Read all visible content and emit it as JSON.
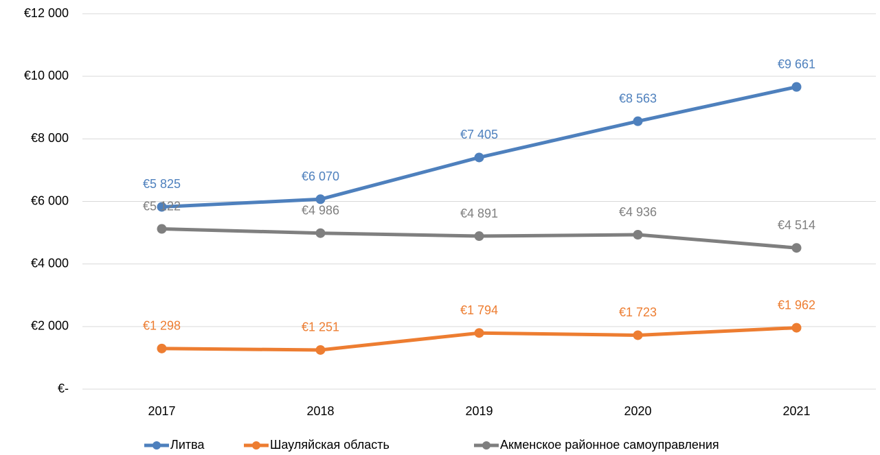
{
  "chart_data": {
    "type": "line",
    "categories": [
      "2017",
      "2018",
      "2019",
      "2020",
      "2021"
    ],
    "series": [
      {
        "name": "Литва",
        "color": "#4e80bd",
        "values": [
          5825,
          6070,
          7405,
          8563,
          9661
        ],
        "value_labels": [
          "€5 825",
          "€6 070",
          "€7 405",
          "€8 563",
          "€9 661"
        ]
      },
      {
        "name": "Шауляйская область",
        "color": "#ed7d31",
        "values": [
          1298,
          1251,
          1794,
          1723,
          1962
        ],
        "value_labels": [
          "€1 298",
          "€1 251",
          "€1 794",
          "€1 723",
          "€1 962"
        ]
      },
      {
        "name": "Акменское районное самоуправления",
        "color": "#7f7f7f",
        "values": [
          5122,
          4986,
          4891,
          4936,
          4514
        ],
        "value_labels": [
          "€5 122",
          "€4 986",
          "€4 891",
          "€4 936",
          "€4 514"
        ]
      }
    ],
    "ylim": [
      0,
      12000
    ],
    "yticks": [
      {
        "value": 0,
        "label": "€-"
      },
      {
        "value": 2000,
        "label": "€2 000"
      },
      {
        "value": 4000,
        "label": "€4 000"
      },
      {
        "value": 6000,
        "label": "€6 000"
      },
      {
        "value": 8000,
        "label": "€8 000"
      },
      {
        "value": 10000,
        "label": "€10 000"
      },
      {
        "value": 12000,
        "label": "€12 000"
      }
    ],
    "grid": true,
    "legend": "bottom"
  }
}
